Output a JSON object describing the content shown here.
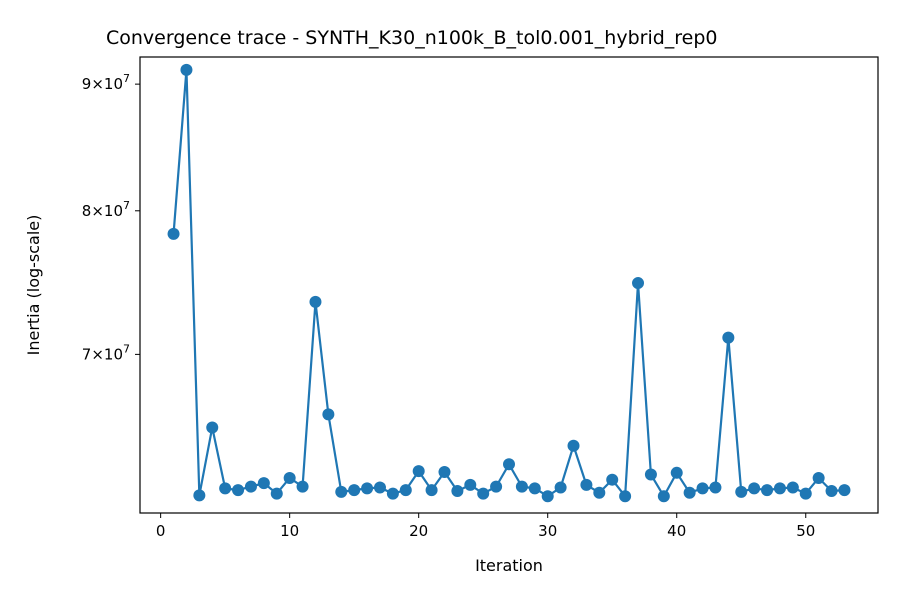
{
  "chart_data": {
    "type": "line",
    "title": "Convergence trace - SYNTH_K30_n100k_B_tol0.001_hybrid_rep0",
    "xlabel": "Iteration",
    "ylabel": "Inertia (log-scale)",
    "yscale": "log",
    "xlim": [
      -1.6,
      55.6
    ],
    "ylim": [
      60400000,
      92300000
    ],
    "x_ticks": [
      0,
      10,
      20,
      30,
      40,
      50
    ],
    "y_ticks": [
      {
        "value": 70000000,
        "mantissa": "7",
        "exp": "7"
      },
      {
        "value": 80000000,
        "mantissa": "8",
        "exp": "7"
      },
      {
        "value": 90000000,
        "mantissa": "9",
        "exp": "7"
      }
    ],
    "grid": false,
    "legend": "none",
    "series": [
      {
        "color": "#1f77b4",
        "marker": "circle",
        "x": [
          1,
          2,
          3,
          4,
          5,
          6,
          7,
          8,
          9,
          10,
          11,
          12,
          13,
          14,
          15,
          16,
          17,
          18,
          19,
          20,
          21,
          22,
          23,
          24,
          25,
          26,
          27,
          28,
          29,
          30,
          31,
          32,
          33,
          34,
          35,
          36,
          37,
          38,
          39,
          40,
          41,
          42,
          43,
          44,
          45,
          46,
          47,
          48,
          49,
          50,
          51,
          52,
          53
        ],
        "values": [
          78300000,
          91200000,
          61400000,
          65400000,
          61800000,
          61700000,
          61900000,
          62100000,
          61500000,
          62400000,
          61900000,
          73500000,
          66200000,
          61600000,
          61700000,
          61800000,
          61850000,
          61500000,
          61700000,
          62800000,
          61700000,
          62750000,
          61650000,
          62000000,
          61500000,
          61900000,
          63200000,
          61900000,
          61800000,
          61350000,
          61850000,
          64300000,
          62000000,
          61550000,
          62300000,
          61350000,
          74800000,
          62600000,
          61350000,
          62700000,
          61550000,
          61800000,
          61850000,
          71100000,
          61600000,
          61800000,
          61700000,
          61800000,
          61850000,
          61500000,
          62400000,
          61650000,
          61700000
        ]
      }
    ]
  }
}
